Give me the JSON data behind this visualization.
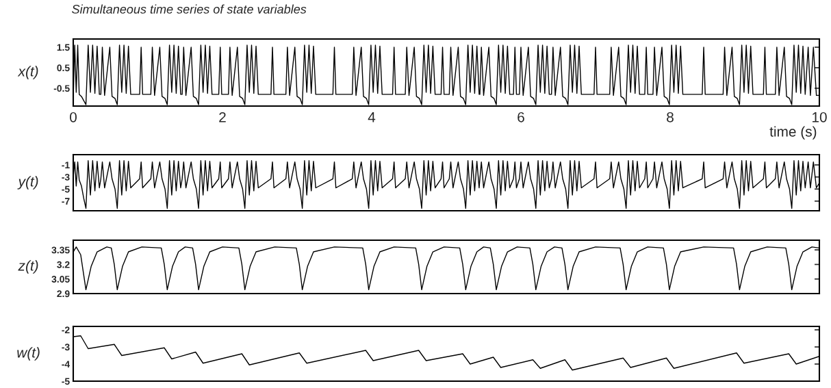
{
  "chart_data": [
    {
      "type": "line",
      "title": "Simultaneous time series of state variables",
      "ylabel": "x(t)",
      "xlabel": "time (s)",
      "color": "#000000",
      "xlim": [
        0,
        10
      ],
      "xticks": [
        0,
        2,
        4,
        6,
        8,
        10
      ],
      "ylim": [
        -1.37,
        1.9
      ],
      "yticks": [
        1.5,
        0.5,
        -0.5
      ],
      "x": [
        0.0,
        0.02,
        0.04,
        0.06,
        0.08,
        0.11,
        0.14,
        0.17,
        0.2,
        0.23,
        0.26,
        0.29,
        0.32,
        0.35,
        0.37,
        0.39,
        0.42,
        0.49,
        0.52,
        0.56,
        0.59,
        0.62,
        0.65,
        0.68,
        0.71,
        0.74,
        0.77,
        0.89,
        0.91,
        0.93,
        1.04,
        1.06,
        1.09,
        1.16,
        1.19,
        1.23,
        1.26,
        1.29,
        1.32,
        1.35,
        1.38,
        1.41,
        1.44,
        1.46,
        1.48,
        1.51,
        1.58,
        1.61,
        1.65,
        1.68,
        1.71,
        1.74,
        1.77,
        1.8,
        1.83,
        1.86,
        1.95,
        1.97,
        1.99,
        2.08,
        2.1,
        2.13,
        2.2,
        2.23,
        2.27,
        2.3,
        2.33,
        2.36,
        2.39,
        2.42,
        2.45,
        2.48,
        2.65,
        2.67,
        2.69,
        2.85,
        2.87,
        2.9,
        2.97,
        3.0,
        3.04,
        3.07,
        3.1,
        3.13,
        3.16,
        3.19,
        3.22,
        3.25,
        3.48,
        3.5,
        3.52,
        3.74,
        3.76,
        3.79,
        3.86,
        3.89,
        3.93,
        3.96,
        3.99,
        4.02,
        4.05,
        4.08,
        4.11,
        4.14,
        4.28,
        4.3,
        4.32,
        4.45,
        4.47,
        4.5,
        4.57,
        4.6,
        4.64,
        4.67,
        4.7,
        4.73,
        4.76,
        4.79,
        4.82,
        4.85,
        4.93,
        4.95,
        4.97,
        5.04,
        5.06,
        5.09,
        5.16,
        5.19,
        5.23,
        5.26,
        5.29,
        5.32,
        5.35,
        5.38,
        5.41,
        5.44,
        5.45,
        5.47,
        5.5,
        5.57,
        5.6,
        5.64,
        5.67,
        5.7,
        5.73,
        5.76,
        5.79,
        5.82,
        5.85,
        5.9,
        5.92,
        5.94,
        5.98,
        6.0,
        6.03,
        6.1,
        6.13,
        6.17,
        6.2,
        6.23,
        6.26,
        6.29,
        6.32,
        6.35,
        6.38,
        6.41,
        6.43,
        6.46,
        6.53,
        6.56,
        6.6,
        6.63,
        6.66,
        6.69,
        6.72,
        6.75,
        6.78,
        6.81,
        6.98,
        7.0,
        7.02,
        7.19,
        7.21,
        7.24,
        7.31,
        7.34,
        7.38,
        7.41,
        7.44,
        7.47,
        7.5,
        7.53,
        7.56,
        7.59,
        7.66,
        7.68,
        7.7,
        7.77,
        7.79,
        7.82,
        7.89,
        7.92,
        7.96,
        7.99,
        8.02,
        8.05,
        8.08,
        8.11,
        8.14,
        8.17,
        8.43,
        8.45,
        8.47,
        8.71,
        8.73,
        8.76,
        8.83,
        8.86,
        8.9,
        8.93,
        8.96,
        8.99,
        9.02,
        9.05,
        9.08,
        9.11,
        9.25,
        9.27,
        9.29,
        9.41,
        9.43,
        9.46,
        9.53,
        9.56,
        9.6,
        9.63,
        9.66,
        9.69,
        9.72,
        9.75,
        9.78,
        9.81,
        9.85,
        9.88,
        9.92,
        9.96,
        10.0
      ],
      "values": [
        -0.95,
        1.6,
        -0.7,
        1.6,
        -0.8,
        -0.9,
        -1.1,
        -1.3,
        1.6,
        -0.7,
        1.6,
        -0.75,
        1.55,
        -0.8,
        -0.8,
        1.5,
        -0.85,
        1.5,
        -0.9,
        -1.0,
        -1.3,
        1.6,
        -0.7,
        1.6,
        -0.75,
        1.55,
        -0.8,
        -0.8,
        1.5,
        -0.8,
        -0.8,
        1.5,
        -0.85,
        1.5,
        -0.9,
        -1.0,
        -1.3,
        1.6,
        -0.7,
        1.6,
        -0.75,
        1.55,
        -0.8,
        -0.8,
        1.5,
        -0.85,
        1.5,
        -0.9,
        -1.0,
        -1.3,
        1.6,
        -0.7,
        1.6,
        -0.75,
        1.55,
        -0.8,
        -0.8,
        1.5,
        -0.8,
        -0.8,
        1.5,
        -0.85,
        1.5,
        -0.9,
        -1.0,
        -1.3,
        1.6,
        -0.7,
        1.6,
        -0.75,
        1.55,
        -0.8,
        -0.8,
        1.5,
        -0.8,
        -0.8,
        1.5,
        -0.85,
        1.5,
        -0.9,
        -1.0,
        -1.3,
        1.6,
        -0.7,
        1.6,
        -0.75,
        1.55,
        -0.8,
        -0.8,
        1.5,
        -0.8,
        -0.8,
        1.5,
        -0.85,
        1.5,
        -0.9,
        -1.0,
        -1.3,
        1.6,
        -0.7,
        1.6,
        -0.75,
        1.55,
        -0.8,
        -0.8,
        1.5,
        -0.8,
        -0.8,
        1.5,
        -0.85,
        1.5,
        -0.9,
        -1.0,
        -1.3,
        1.6,
        -0.7,
        1.6,
        -0.75,
        1.55,
        -0.8,
        -0.8,
        1.5,
        -0.8,
        -0.8,
        1.5,
        -0.85,
        1.5,
        -0.9,
        -1.0,
        -1.3,
        1.6,
        -0.7,
        1.6,
        -0.75,
        1.55,
        -0.8,
        -0.8,
        1.5,
        -0.85,
        1.5,
        -0.9,
        -1.0,
        -1.3,
        1.6,
        -0.7,
        1.6,
        -0.75,
        1.55,
        -0.8,
        -0.8,
        1.5,
        -0.8,
        -0.8,
        1.5,
        -0.85,
        1.5,
        -0.9,
        -1.0,
        -1.3,
        1.6,
        -0.7,
        1.6,
        -0.75,
        1.55,
        -0.8,
        -0.8,
        1.5,
        -0.85,
        1.5,
        -0.9,
        -1.0,
        -1.3,
        1.6,
        -0.7,
        1.6,
        -0.75,
        1.55,
        -0.8,
        -0.8,
        1.5,
        -0.8,
        -0.8,
        1.5,
        -0.85,
        1.5,
        -0.9,
        -1.0,
        -1.3,
        1.6,
        -0.7,
        1.6,
        -0.75,
        1.55,
        -0.8,
        -0.8,
        1.5,
        -0.8,
        -0.8,
        1.5,
        -0.85,
        1.5,
        -0.9,
        -1.0,
        -1.3,
        1.6,
        -0.7,
        1.6,
        -0.75,
        1.55,
        -0.8,
        -0.8,
        1.5,
        -0.8,
        -0.8,
        1.5,
        -0.85,
        1.5,
        -0.9,
        -1.0,
        -1.3,
        1.6,
        -0.7,
        1.6,
        -0.75,
        1.55,
        -0.8,
        -0.8,
        1.5,
        -0.8,
        -0.8,
        1.5,
        -0.85,
        1.5,
        -0.9,
        -1.0,
        -1.3,
        1.6,
        -0.7,
        1.6,
        -0.75,
        1.55,
        -0.8,
        1.5,
        -0.85,
        1.5,
        -0.85,
        -0.85
      ]
    },
    {
      "type": "line",
      "ylabel": "y(t)",
      "color": "#000000",
      "xlim": [
        0,
        10
      ],
      "xticks": [
        0,
        2,
        4,
        6,
        8,
        10
      ],
      "ylim": [
        -8.6,
        0.7
      ],
      "yticks": [
        -1,
        -3,
        -5,
        -7
      ],
      "tick_labels": "y",
      "x": [
        0.0,
        0.02,
        0.04,
        0.06,
        0.08,
        0.11,
        0.14,
        0.17,
        0.2,
        0.23,
        0.26,
        0.29,
        0.32,
        0.35,
        0.37,
        0.39,
        0.42,
        0.49,
        0.52,
        0.56,
        0.59,
        0.62,
        0.65,
        0.68,
        0.71,
        0.74,
        0.77,
        0.89,
        0.91,
        0.93,
        1.04,
        1.06,
        1.09,
        1.16,
        1.19,
        1.23,
        1.26,
        1.29,
        1.32,
        1.35,
        1.38,
        1.41,
        1.44,
        1.46,
        1.48,
        1.51,
        1.58,
        1.61,
        1.65,
        1.68,
        1.71,
        1.74,
        1.77,
        1.8,
        1.83,
        1.86,
        1.95,
        1.97,
        1.99,
        2.08,
        2.1,
        2.13,
        2.2,
        2.23,
        2.27,
        2.3,
        2.33,
        2.36,
        2.39,
        2.42,
        2.45,
        2.48,
        2.65,
        2.67,
        2.69,
        2.85,
        2.87,
        2.9,
        2.97,
        3.0,
        3.04,
        3.07,
        3.1,
        3.13,
        3.16,
        3.19,
        3.22,
        3.25,
        3.48,
        3.5,
        3.52,
        3.74,
        3.76,
        3.79,
        3.86,
        3.89,
        3.93,
        3.96,
        3.99,
        4.02,
        4.05,
        4.08,
        4.11,
        4.14,
        4.28,
        4.3,
        4.32,
        4.45,
        4.47,
        4.5,
        4.57,
        4.6,
        4.64,
        4.67,
        4.7,
        4.73,
        4.76,
        4.79,
        4.82,
        4.85,
        4.93,
        4.95,
        4.97,
        5.04,
        5.06,
        5.09,
        5.16,
        5.19,
        5.23,
        5.26,
        5.29,
        5.32,
        5.35,
        5.38,
        5.41,
        5.44,
        5.45,
        5.47,
        5.5,
        5.57,
        5.6,
        5.64,
        5.67,
        5.7,
        5.73,
        5.76,
        5.79,
        5.82,
        5.85,
        5.9,
        5.92,
        5.94,
        5.98,
        6.0,
        6.03,
        6.1,
        6.13,
        6.17,
        6.2,
        6.23,
        6.26,
        6.29,
        6.32,
        6.35,
        6.38,
        6.41,
        6.43,
        6.46,
        6.53,
        6.56,
        6.6,
        6.63,
        6.66,
        6.69,
        6.72,
        6.75,
        6.78,
        6.81,
        6.98,
        7.0,
        7.02,
        7.19,
        7.21,
        7.24,
        7.31,
        7.34,
        7.38,
        7.41,
        7.44,
        7.47,
        7.5,
        7.53,
        7.56,
        7.59,
        7.66,
        7.68,
        7.7,
        7.77,
        7.79,
        7.82,
        7.89,
        7.92,
        7.96,
        7.99,
        8.02,
        8.05,
        8.08,
        8.11,
        8.14,
        8.17,
        8.43,
        8.45,
        8.47,
        8.71,
        8.73,
        8.76,
        8.83,
        8.86,
        8.9,
        8.93,
        8.96,
        8.99,
        9.02,
        9.05,
        9.08,
        9.11,
        9.25,
        9.27,
        9.29,
        9.41,
        9.43,
        9.46,
        9.53,
        9.56,
        9.6,
        9.63,
        9.66,
        9.69,
        9.72,
        9.75,
        9.78,
        9.81,
        9.85,
        9.88,
        9.92,
        9.96,
        10.0
      ],
      "values": [
        -3.0,
        -0.5,
        -4.5,
        -0.5,
        -3.5,
        -4.5,
        -6.5,
        -8.2,
        -0.3,
        -6,
        -0.3,
        -5.3,
        -0.4,
        -4.8,
        -3.3,
        -0.5,
        -4.8,
        -0.5,
        -3.3,
        -5.0,
        -8.2,
        -0.3,
        -6,
        -0.3,
        -5.3,
        -0.4,
        -4.8,
        -3.3,
        -0.5,
        -4.8,
        -3.3,
        -0.5,
        -4.8,
        -0.5,
        -3.3,
        -5.0,
        -8.2,
        -0.3,
        -6,
        -0.3,
        -5.3,
        -0.4,
        -4.8,
        -3.3,
        -0.5,
        -4.8,
        -0.5,
        -3.3,
        -5.0,
        -8.2,
        -0.3,
        -6,
        -0.3,
        -5.3,
        -0.4,
        -4.8,
        -3.3,
        -0.5,
        -4.8,
        -3.3,
        -0.5,
        -4.8,
        -0.5,
        -3.3,
        -5.0,
        -8.2,
        -0.3,
        -6,
        -0.3,
        -5.3,
        -0.4,
        -4.8,
        -3.3,
        -0.5,
        -4.8,
        -3.3,
        -0.5,
        -4.8,
        -0.5,
        -3.3,
        -5.0,
        -8.2,
        -0.3,
        -6,
        -0.3,
        -5.3,
        -0.4,
        -4.8,
        -3.3,
        -0.5,
        -4.8,
        -3.3,
        -0.5,
        -4.8,
        -0.5,
        -3.3,
        -5.0,
        -8.2,
        -0.3,
        -6,
        -0.3,
        -5.3,
        -0.4,
        -4.8,
        -3.3,
        -0.5,
        -4.8,
        -3.3,
        -0.5,
        -4.8,
        -0.5,
        -3.3,
        -5.0,
        -8.2,
        -0.3,
        -6,
        -0.3,
        -5.3,
        -0.4,
        -4.8,
        -3.3,
        -0.5,
        -4.8,
        -3.3,
        -0.5,
        -4.8,
        -0.5,
        -3.3,
        -5.0,
        -8.2,
        -0.3,
        -6,
        -0.3,
        -5.3,
        -0.4,
        -4.8,
        -3.3,
        -0.5,
        -4.8,
        -0.5,
        -3.3,
        -5.0,
        -8.2,
        -0.3,
        -6,
        -0.3,
        -5.3,
        -0.4,
        -4.8,
        -3.3,
        -0.5,
        -4.8,
        -3.3,
        -0.5,
        -4.8,
        -0.5,
        -3.3,
        -5.0,
        -8.2,
        -0.3,
        -6,
        -0.3,
        -5.3,
        -0.4,
        -4.8,
        -3.3,
        -0.5,
        -4.8,
        -0.5,
        -3.3,
        -5.0,
        -8.2,
        -0.3,
        -6,
        -0.3,
        -5.3,
        -0.4,
        -4.8,
        -3.3,
        -0.5,
        -4.8,
        -3.3,
        -0.5,
        -4.8,
        -0.5,
        -3.3,
        -5.0,
        -8.2,
        -0.3,
        -6,
        -0.3,
        -5.3,
        -0.4,
        -4.8,
        -3.3,
        -0.5,
        -4.8,
        -3.3,
        -0.5,
        -4.8,
        -0.5,
        -3.3,
        -5.0,
        -8.2,
        -0.3,
        -6,
        -0.3,
        -5.3,
        -0.4,
        -4.8,
        -3.3,
        -0.5,
        -4.8,
        -3.3,
        -0.5,
        -4.8,
        -0.5,
        -3.3,
        -5.0,
        -8.2,
        -0.3,
        -6,
        -0.3,
        -5.3,
        -0.4,
        -4.8,
        -3.3,
        -0.5,
        -4.8,
        -3.3,
        -0.5,
        -4.8,
        -0.5,
        -3.3,
        -5.0,
        -8.2,
        -0.3,
        -6,
        -0.3,
        -5.3,
        -0.4,
        -4.8,
        -0.5,
        -4.8,
        -0.5,
        -4.8,
        -4.0
      ]
    },
    {
      "type": "line",
      "ylabel": "z(t)",
      "color": "#000000",
      "xlim": [
        0,
        10
      ],
      "xticks": [
        0,
        2,
        4,
        6,
        8,
        10
      ],
      "ylim": [
        2.9,
        3.45
      ],
      "yticks": [
        3.35,
        3.2,
        3.05,
        2.9
      ],
      "tick_labels": "y",
      "x": [
        0.0,
        0.04,
        0.1,
        0.17,
        0.24,
        0.32,
        0.45,
        0.51,
        0.55,
        0.59,
        0.66,
        0.74,
        0.92,
        1.18,
        1.22,
        1.26,
        1.33,
        1.41,
        1.5,
        1.6,
        1.64,
        1.68,
        1.75,
        1.83,
        2.0,
        2.22,
        2.26,
        2.3,
        2.37,
        2.45,
        2.7,
        2.99,
        3.03,
        3.07,
        3.14,
        3.22,
        3.5,
        3.88,
        3.92,
        3.96,
        4.03,
        4.11,
        4.3,
        4.59,
        4.63,
        4.67,
        4.74,
        4.82,
        4.97,
        5.18,
        5.22,
        5.26,
        5.33,
        5.41,
        5.5,
        5.59,
        5.63,
        5.67,
        5.74,
        5.82,
        5.95,
        6.12,
        6.16,
        6.2,
        6.27,
        6.35,
        6.45,
        6.55,
        6.59,
        6.63,
        6.7,
        6.78,
        7.0,
        7.33,
        7.37,
        7.41,
        7.48,
        7.56,
        7.7,
        7.91,
        7.95,
        7.99,
        8.06,
        8.14,
        8.45,
        8.85,
        8.89,
        8.93,
        9.0,
        9.08,
        9.3,
        9.55,
        9.59,
        9.63,
        9.7,
        9.78,
        9.9,
        10.0
      ],
      "values": [
        3.33,
        3.38,
        3.3,
        2.94,
        3.18,
        3.33,
        3.38,
        3.37,
        3.2,
        2.94,
        3.18,
        3.33,
        3.38,
        3.37,
        3.2,
        2.94,
        3.18,
        3.33,
        3.38,
        3.37,
        3.2,
        2.94,
        3.18,
        3.33,
        3.38,
        3.37,
        3.2,
        2.94,
        3.18,
        3.33,
        3.38,
        3.37,
        3.2,
        2.94,
        3.18,
        3.33,
        3.38,
        3.37,
        3.2,
        2.94,
        3.18,
        3.33,
        3.38,
        3.37,
        3.2,
        2.94,
        3.18,
        3.33,
        3.38,
        3.37,
        3.2,
        2.94,
        3.18,
        3.33,
        3.38,
        3.37,
        3.2,
        2.94,
        3.18,
        3.33,
        3.38,
        3.37,
        3.2,
        2.94,
        3.18,
        3.33,
        3.38,
        3.37,
        3.2,
        2.94,
        3.18,
        3.33,
        3.38,
        3.37,
        3.2,
        2.94,
        3.18,
        3.33,
        3.38,
        3.37,
        3.2,
        2.94,
        3.18,
        3.33,
        3.38,
        3.37,
        3.2,
        2.94,
        3.18,
        3.33,
        3.38,
        3.37,
        3.2,
        2.94,
        3.18,
        3.33,
        3.38,
        3.37
      ]
    },
    {
      "type": "line",
      "ylabel": "w(t)",
      "color": "#000000",
      "xlim": [
        0,
        10
      ],
      "xticks": [
        0,
        2,
        4,
        6,
        8,
        10
      ],
      "ylim": [
        -5,
        -1.8
      ],
      "yticks": [
        -2,
        -3,
        -4,
        -5
      ],
      "tick_labels": "y",
      "x": [
        0.0,
        0.1,
        0.2,
        0.55,
        0.65,
        1.22,
        1.32,
        1.64,
        1.74,
        2.26,
        2.36,
        3.03,
        3.13,
        3.92,
        4.02,
        4.63,
        4.73,
        5.22,
        5.32,
        5.63,
        5.73,
        6.16,
        6.26,
        6.59,
        6.69,
        7.37,
        7.47,
        7.95,
        8.05,
        8.89,
        8.99,
        9.59,
        9.69,
        10.0
      ],
      "values": [
        -2.4,
        -2.35,
        -3.1,
        -2.85,
        -3.5,
        -3.05,
        -3.7,
        -3.3,
        -3.95,
        -3.4,
        -4.05,
        -3.35,
        -3.95,
        -3.2,
        -3.8,
        -3.2,
        -3.8,
        -3.4,
        -4.0,
        -3.6,
        -4.2,
        -3.75,
        -4.25,
        -3.75,
        -4.35,
        -3.65,
        -4.2,
        -3.65,
        -4.25,
        -3.35,
        -3.95,
        -3.4,
        -4.0,
        -3.55
      ]
    }
  ]
}
